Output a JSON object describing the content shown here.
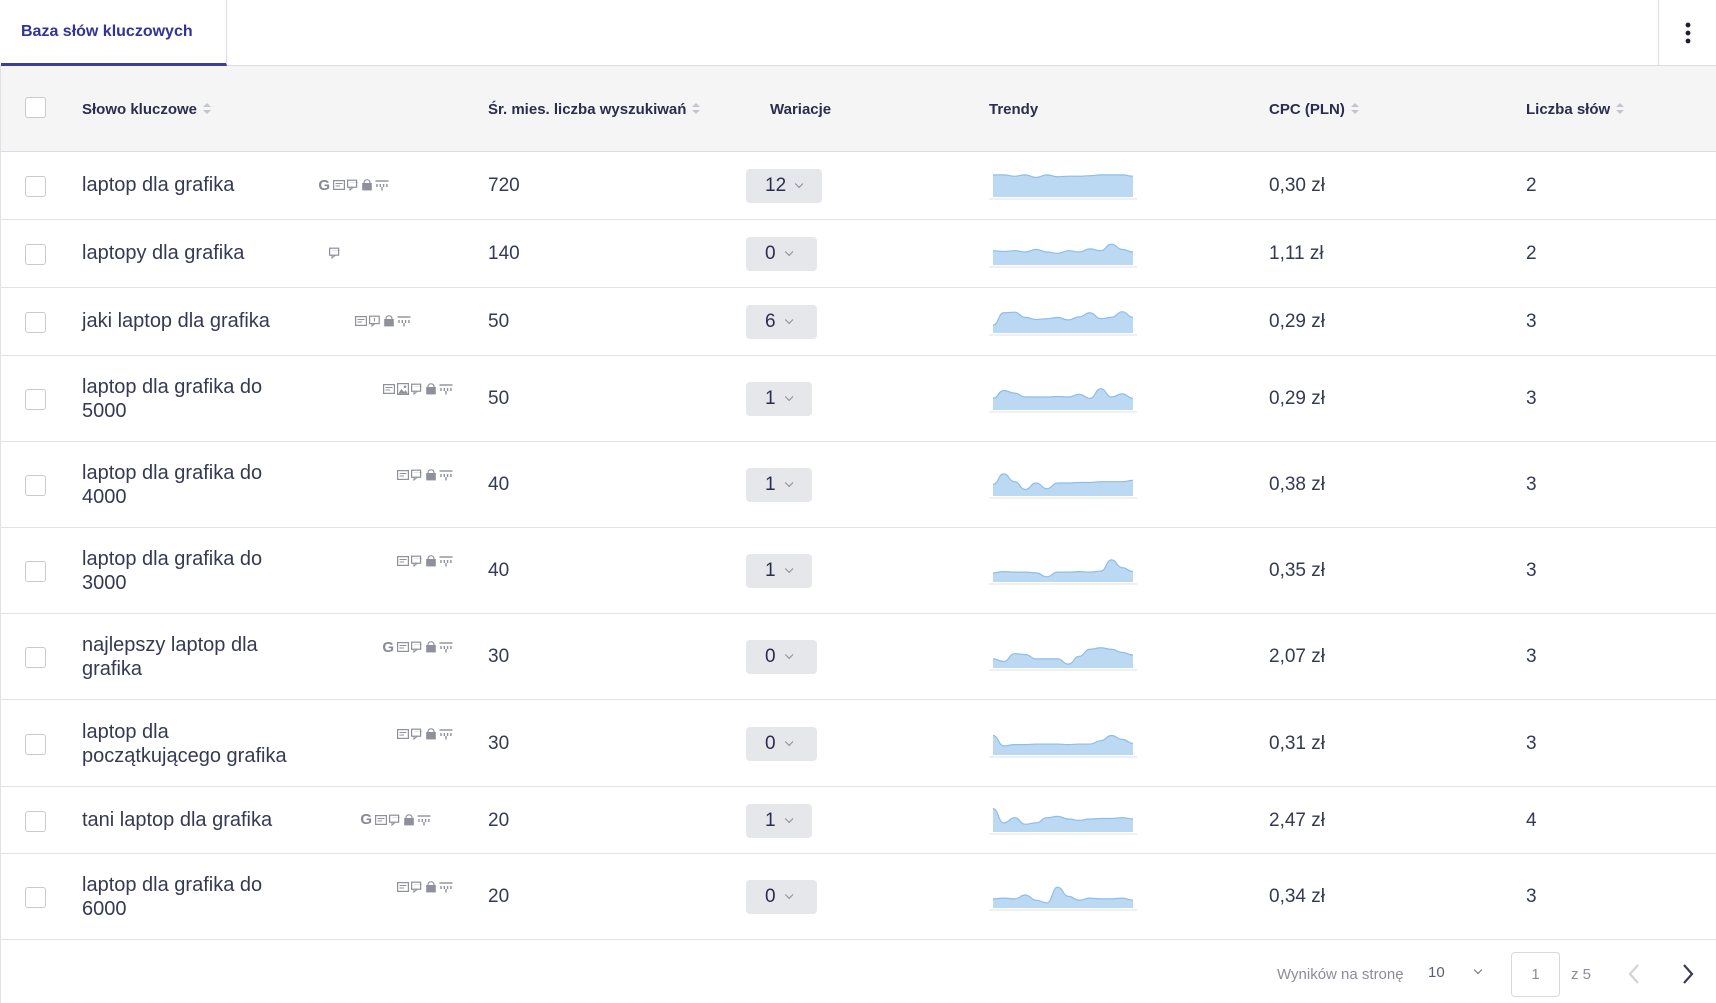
{
  "tab": {
    "label": "Baza słów kluczowych"
  },
  "columns": {
    "keyword": "Słowo kluczowe",
    "volume": "Śr. mies. liczba wyszukiwań",
    "variations": "Wariacje",
    "trends": "Trendy",
    "cpc": "CPC (PLN)",
    "words": "Liczba słów"
  },
  "rows": [
    {
      "keyword": "laptop dla grafika",
      "serp": [
        "google-g-icon",
        "featured-snippet-icon",
        "reviews-icon",
        "shopping-icon",
        "sitelinks-icon"
      ],
      "volume": "720",
      "variations": "12",
      "cpc": "0,30 zł",
      "words": "2",
      "trend": [
        0.85,
        0.85,
        0.8,
        0.85,
        0.75,
        0.85,
        0.78,
        0.8,
        0.8,
        0.82,
        0.85,
        0.85,
        0.85,
        0.8
      ]
    },
    {
      "keyword": "laptopy dla grafika",
      "serp": [
        "reviews-icon"
      ],
      "volume": "140",
      "variations": "0",
      "cpc": "1,11 zł",
      "words": "2",
      "trend": [
        0.55,
        0.52,
        0.55,
        0.5,
        0.6,
        0.5,
        0.45,
        0.55,
        0.5,
        0.62,
        0.55,
        0.8,
        0.6,
        0.5
      ]
    },
    {
      "keyword": "jaki laptop dla grafika",
      "serp": [
        "featured-snippet-icon",
        "knowledge-panel-icon",
        "shopping-icon",
        "sitelinks-icon"
      ],
      "volume": "50",
      "variations": "6",
      "cpc": "0,29 zł",
      "words": "3",
      "trend": [
        0.3,
        0.78,
        0.8,
        0.6,
        0.52,
        0.55,
        0.6,
        0.5,
        0.62,
        0.78,
        0.55,
        0.6,
        0.82,
        0.6
      ]
    },
    {
      "keyword": "laptop dla grafika do 5000",
      "serp": [
        "featured-snippet-icon",
        "image-pack-icon",
        "reviews-icon",
        "shopping-icon",
        "sitelinks-icon"
      ],
      "volume": "50",
      "variations": "1",
      "cpc": "0,29 zł",
      "words": "3",
      "trend": [
        0.45,
        0.75,
        0.65,
        0.5,
        0.5,
        0.5,
        0.52,
        0.5,
        0.6,
        0.45,
        0.82,
        0.5,
        0.62,
        0.45
      ]
    },
    {
      "keyword": "laptop dla grafika do 4000",
      "serp": [
        "featured-snippet-icon",
        "reviews-icon",
        "shopping-icon",
        "sitelinks-icon"
      ],
      "volume": "40",
      "variations": "1",
      "cpc": "0,38 zł",
      "words": "3",
      "trend": [
        0.45,
        0.85,
        0.55,
        0.25,
        0.5,
        0.28,
        0.5,
        0.5,
        0.52,
        0.52,
        0.55,
        0.55,
        0.55,
        0.6
      ]
    },
    {
      "keyword": "laptop dla grafika do 3000",
      "serp": [
        "featured-snippet-icon",
        "reviews-icon",
        "shopping-icon",
        "sitelinks-icon"
      ],
      "volume": "40",
      "variations": "1",
      "cpc": "0,35 zł",
      "words": "3",
      "trend": [
        0.35,
        0.4,
        0.38,
        0.38,
        0.35,
        0.2,
        0.38,
        0.38,
        0.4,
        0.38,
        0.42,
        0.85,
        0.55,
        0.4
      ]
    },
    {
      "keyword": "najlepszy laptop dla grafika",
      "serp": [
        "google-g-icon",
        "featured-snippet-icon",
        "reviews-icon",
        "shopping-icon",
        "sitelinks-icon"
      ],
      "volume": "30",
      "variations": "0",
      "cpc": "2,07 zł",
      "words": "3",
      "trend": [
        0.35,
        0.25,
        0.55,
        0.52,
        0.35,
        0.35,
        0.35,
        0.15,
        0.45,
        0.72,
        0.78,
        0.72,
        0.6,
        0.5
      ]
    },
    {
      "keyword": "laptop dla początkującego grafika",
      "serp": [
        "featured-snippet-icon",
        "reviews-icon",
        "shopping-icon",
        "sitelinks-icon"
      ],
      "volume": "30",
      "variations": "0",
      "cpc": "0,31 zł",
      "words": "3",
      "trend": [
        0.75,
        0.35,
        0.4,
        0.4,
        0.42,
        0.42,
        0.42,
        0.4,
        0.42,
        0.42,
        0.55,
        0.75,
        0.6,
        0.45
      ]
    },
    {
      "keyword": "tani laptop dla grafika",
      "serp": [
        "google-g-icon",
        "featured-snippet-icon",
        "reviews-icon",
        "shopping-icon",
        "sitelinks-icon"
      ],
      "volume": "20",
      "variations": "1",
      "cpc": "2,47 zł",
      "words": "4",
      "trend": [
        0.9,
        0.35,
        0.55,
        0.3,
        0.35,
        0.55,
        0.6,
        0.5,
        0.45,
        0.5,
        0.52,
        0.52,
        0.55,
        0.5
      ]
    },
    {
      "keyword": "laptop dla grafika do 6000",
      "serp": [
        "featured-snippet-icon",
        "reviews-icon",
        "shopping-icon",
        "sitelinks-icon"
      ],
      "volume": "20",
      "variations": "0",
      "cpc": "0,34 zł",
      "words": "3",
      "trend": [
        0.35,
        0.38,
        0.35,
        0.5,
        0.3,
        0.2,
        0.8,
        0.45,
        0.3,
        0.38,
        0.35,
        0.35,
        0.38,
        0.3
      ]
    }
  ],
  "footer": {
    "per_page_label": "Wyników na stronę",
    "per_page_value": "10",
    "page": "1",
    "of_label": "z 5"
  },
  "colors": {
    "accent": "#3d3d9e",
    "trend_fill": "#bcd9f3",
    "trend_line": "#8fbde8"
  }
}
